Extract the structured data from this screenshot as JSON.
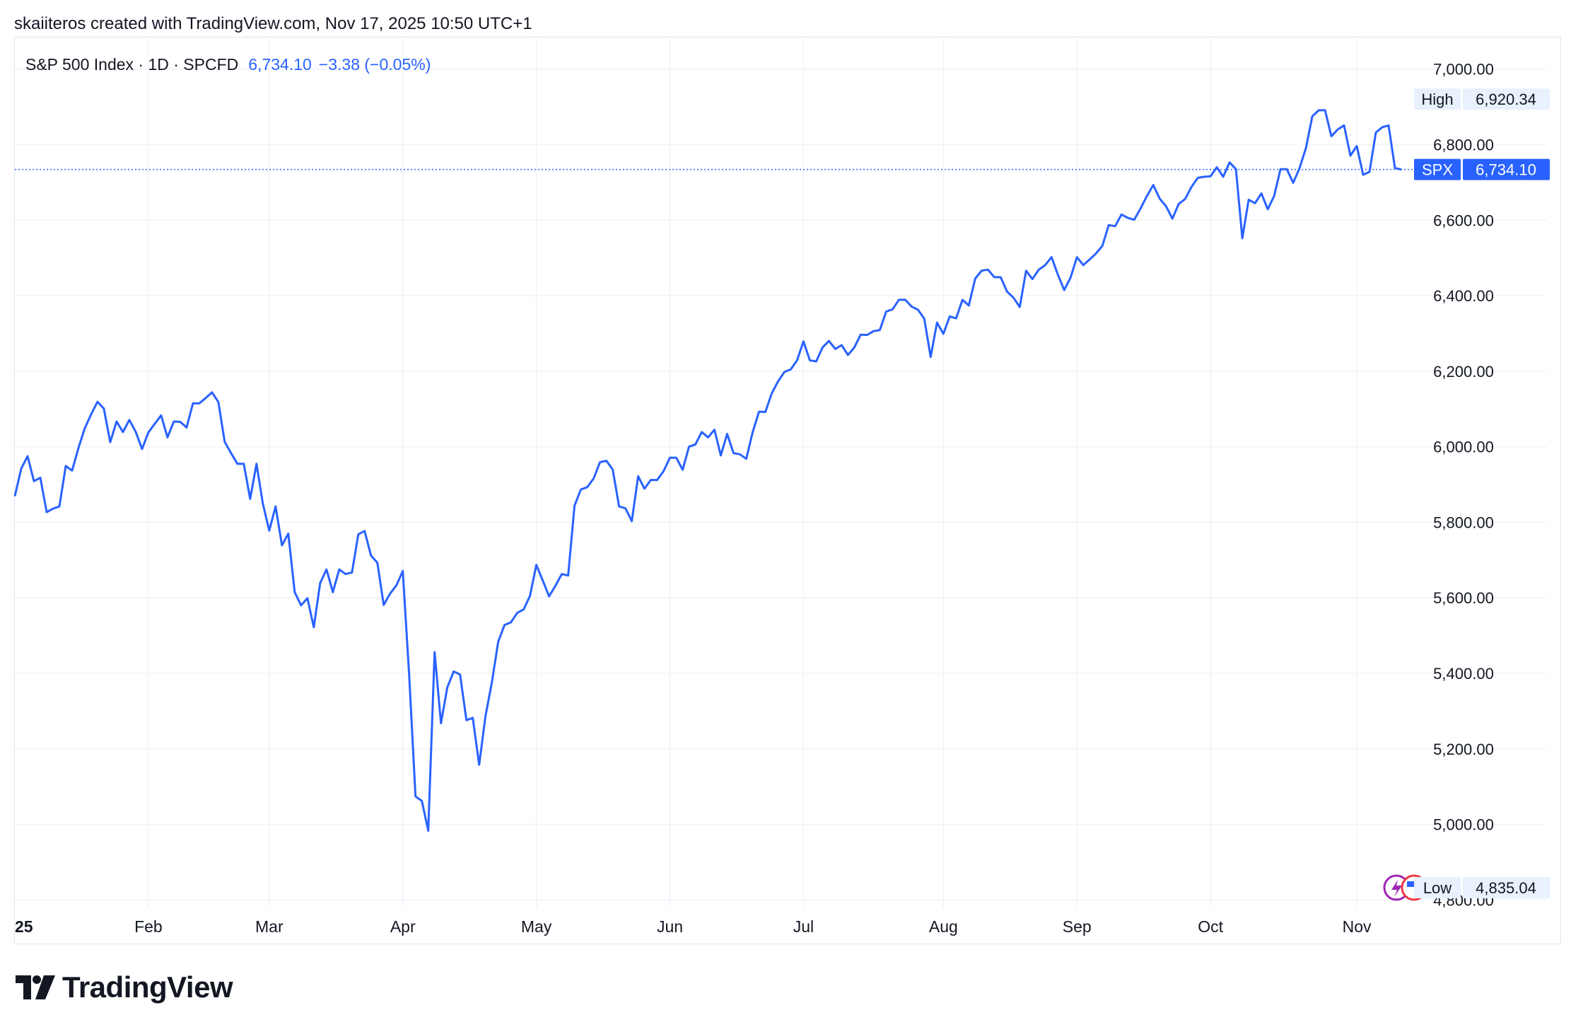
{
  "header": {
    "text": "skaiiteros created with TradingView.com, Nov 17, 2025 10:50 UTC+1"
  },
  "legend": {
    "symbol_text": "S&P 500 Index · 1D · SPCFD",
    "last_value": "6,734.10",
    "change": "−3.38 (−0.05%)"
  },
  "footer": {
    "brand": "TradingView"
  },
  "colors": {
    "line": "#2962ff",
    "grid": "#f0f3fa",
    "tag_bg": "#2962ff",
    "label_bg": "#e8f1fd"
  },
  "chart_data": {
    "type": "line",
    "title": "",
    "xlabel": "",
    "ylabel": "",
    "ylim": [
      4780,
      7080
    ],
    "xlim": [
      0,
      218
    ],
    "yticks": [
      {
        "value": 7000,
        "label": "7,000.00"
      },
      {
        "value": 6800,
        "label": "6,800.00"
      },
      {
        "value": 6600,
        "label": "6,600.00"
      },
      {
        "value": 6400,
        "label": "6,400.00"
      },
      {
        "value": 6200,
        "label": "6,200.00"
      },
      {
        "value": 6000,
        "label": "6,000.00"
      },
      {
        "value": 5800,
        "label": "5,800.00"
      },
      {
        "value": 5600,
        "label": "5,600.00"
      },
      {
        "value": 5400,
        "label": "5,400.00"
      },
      {
        "value": 5200,
        "label": "5,200.00"
      },
      {
        "value": 5000,
        "label": "5,000.00"
      },
      {
        "value": 4800,
        "label": "4,800.00"
      }
    ],
    "xticks": [
      {
        "index": 0,
        "label": "25",
        "bold": true
      },
      {
        "index": 21,
        "label": "Feb"
      },
      {
        "index": 40,
        "label": "Mar"
      },
      {
        "index": 61,
        "label": "Apr"
      },
      {
        "index": 82,
        "label": "May"
      },
      {
        "index": 103,
        "label": "Jun"
      },
      {
        "index": 124,
        "label": "Jul"
      },
      {
        "index": 146,
        "label": "Aug"
      },
      {
        "index": 167,
        "label": "Sep"
      },
      {
        "index": 188,
        "label": "Oct"
      },
      {
        "index": 211,
        "label": "Nov"
      }
    ],
    "series": [
      {
        "values": [
          5869,
          5942,
          5975,
          5909,
          5918,
          5827,
          5836,
          5842,
          5949,
          5937,
          5997,
          6049,
          6086,
          6119,
          6101,
          6012,
          6067,
          6039,
          6071,
          6040,
          5994,
          6038,
          6061,
          6083,
          6025,
          6067,
          6066,
          6051,
          6115,
          6115,
          6129,
          6144,
          6118,
          6013,
          5983,
          5955,
          5955,
          5862,
          5955,
          5849,
          5778,
          5842,
          5739,
          5770,
          5615,
          5580,
          5599,
          5522,
          5639,
          5675,
          5615,
          5675,
          5663,
          5667,
          5768,
          5777,
          5712,
          5693,
          5581,
          5611,
          5633,
          5671,
          5396,
          5074,
          5062,
          4983,
          5456,
          5268,
          5363,
          5405,
          5397,
          5276,
          5282,
          5158,
          5287,
          5376,
          5484,
          5528,
          5535,
          5560,
          5569,
          5605,
          5687,
          5646,
          5604,
          5632,
          5663,
          5659,
          5844,
          5887,
          5893,
          5916,
          5959,
          5963,
          5940,
          5842,
          5837,
          5803,
          5922,
          5889,
          5912,
          5912,
          5935,
          5971,
          5971,
          5939,
          6000,
          6006,
          6039,
          6025,
          6045,
          5977,
          6034,
          5983,
          5980,
          5968,
          6038,
          6093,
          6092,
          6141,
          6173,
          6198,
          6205,
          6229,
          6279,
          6229,
          6226,
          6263,
          6280,
          6259,
          6269,
          6243,
          6263,
          6297,
          6296,
          6306,
          6309,
          6358,
          6364,
          6389,
          6389,
          6371,
          6363,
          6339,
          6238,
          6329,
          6299,
          6345,
          6340,
          6389,
          6374,
          6445,
          6466,
          6469,
          6449,
          6449,
          6411,
          6395,
          6370,
          6466,
          6444,
          6469,
          6481,
          6502,
          6456,
          6415,
          6448,
          6502,
          6481,
          6496,
          6512,
          6532,
          6587,
          6584,
          6615,
          6606,
          6601,
          6631,
          6664,
          6693,
          6657,
          6637,
          6604,
          6643,
          6656,
          6688,
          6712,
          6715,
          6716,
          6740,
          6715,
          6753,
          6735,
          6552,
          6654,
          6645,
          6671,
          6629,
          6664,
          6735,
          6735,
          6699,
          6738,
          6791,
          6875,
          6891,
          6891,
          6822,
          6840,
          6851,
          6771,
          6796,
          6720,
          6728,
          6832,
          6846,
          6851,
          6738,
          6734
        ]
      }
    ],
    "last_tag": {
      "label": "SPX",
      "value": 6734.1,
      "value_label": "6,734.10"
    },
    "high": {
      "label": "High",
      "value": 6920.34,
      "value_label": "6,920.34"
    },
    "low": {
      "label": "Low",
      "value": 4835.04,
      "value_label": "4,835.04"
    },
    "grid": true
  }
}
